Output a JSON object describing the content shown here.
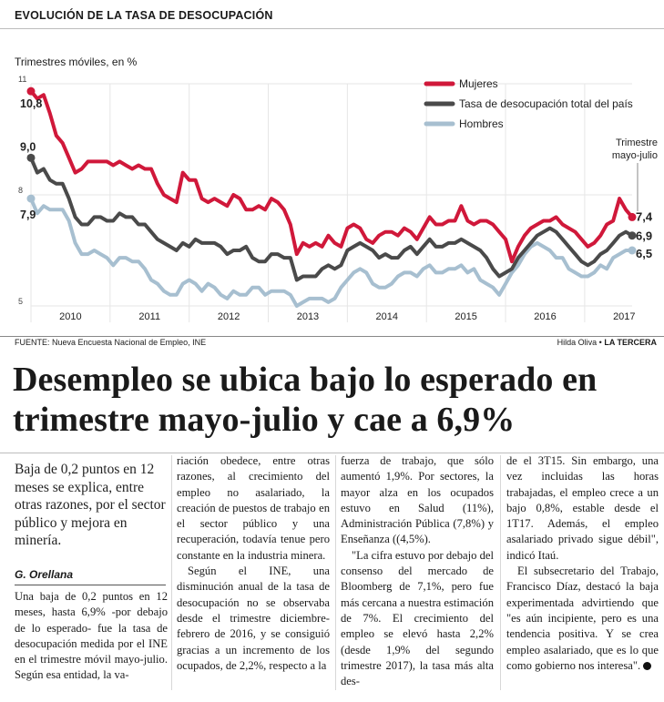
{
  "header": {
    "kicker": "EVOLUCIÓN DE LA TASA DE DESOCUPACIÓN",
    "units": "Trimestres móviles, en %"
  },
  "chart_data": {
    "type": "line",
    "x_range": [
      2010.0,
      2017.6
    ],
    "ylim": [
      5,
      11
    ],
    "y_ticks": [
      5,
      8,
      11
    ],
    "year_labels": [
      "2010",
      "2011",
      "2012",
      "2013",
      "2014",
      "2015",
      "2016",
      "2017"
    ],
    "legend": [
      "Mujeres",
      "Tasa de desocupación total del país",
      "Hombres"
    ],
    "annotation": "Trimestre mayo-julio",
    "start_labels": [
      "10,8",
      "9,0",
      "7,9"
    ],
    "end_labels": [
      "7,4",
      "6,9",
      "6,5"
    ],
    "series": [
      {
        "name": "Mujeres",
        "color": "#d0183a",
        "values": [
          10.8,
          10.6,
          10.7,
          10.2,
          9.6,
          9.4,
          9.0,
          8.6,
          8.7,
          8.9,
          8.9,
          8.9,
          8.9,
          8.8,
          8.9,
          8.8,
          8.7,
          8.8,
          8.7,
          8.7,
          8.3,
          8.0,
          7.9,
          7.8,
          8.6,
          8.4,
          8.4,
          7.9,
          7.8,
          7.9,
          7.8,
          7.7,
          8.0,
          7.9,
          7.6,
          7.6,
          7.7,
          7.6,
          7.9,
          7.8,
          7.6,
          7.2,
          6.4,
          6.7,
          6.6,
          6.7,
          6.6,
          6.9,
          6.7,
          6.6,
          7.1,
          7.2,
          7.1,
          6.8,
          6.7,
          6.9,
          7.0,
          7.0,
          6.9,
          7.1,
          7.0,
          6.8,
          7.1,
          7.4,
          7.2,
          7.2,
          7.3,
          7.3,
          7.7,
          7.3,
          7.2,
          7.3,
          7.3,
          7.2,
          7.0,
          6.8,
          6.2,
          6.6,
          6.9,
          7.1,
          7.2,
          7.3,
          7.3,
          7.4,
          7.2,
          7.1,
          7.0,
          6.8,
          6.6,
          6.7,
          6.9,
          7.2,
          7.3,
          7.9,
          7.6,
          7.4
        ]
      },
      {
        "name": "Tasa de desocupación total del país",
        "color": "#4a4a4a",
        "values": [
          9.0,
          8.6,
          8.7,
          8.4,
          8.3,
          8.3,
          7.9,
          7.4,
          7.2,
          7.2,
          7.4,
          7.4,
          7.3,
          7.3,
          7.5,
          7.4,
          7.4,
          7.2,
          7.2,
          7.0,
          6.8,
          6.7,
          6.6,
          6.5,
          6.7,
          6.6,
          6.8,
          6.7,
          6.7,
          6.7,
          6.6,
          6.4,
          6.5,
          6.5,
          6.6,
          6.3,
          6.2,
          6.2,
          6.4,
          6.4,
          6.3,
          6.3,
          5.7,
          5.8,
          5.8,
          5.8,
          6.0,
          6.1,
          6.0,
          6.1,
          6.5,
          6.6,
          6.7,
          6.6,
          6.5,
          6.3,
          6.4,
          6.3,
          6.3,
          6.5,
          6.6,
          6.4,
          6.6,
          6.8,
          6.6,
          6.6,
          6.7,
          6.7,
          6.8,
          6.7,
          6.6,
          6.5,
          6.3,
          6.0,
          5.8,
          5.9,
          6.0,
          6.3,
          6.5,
          6.7,
          6.9,
          7.0,
          7.1,
          7.0,
          6.8,
          6.6,
          6.4,
          6.2,
          6.1,
          6.2,
          6.4,
          6.5,
          6.7,
          6.9,
          7.0,
          6.9
        ]
      },
      {
        "name": "Hombres",
        "color": "#a7bfd0",
        "values": [
          7.9,
          7.5,
          7.7,
          7.6,
          7.6,
          7.6,
          7.3,
          6.7,
          6.4,
          6.4,
          6.5,
          6.4,
          6.3,
          6.1,
          6.3,
          6.3,
          6.2,
          6.2,
          6.0,
          5.7,
          5.6,
          5.4,
          5.3,
          5.3,
          5.6,
          5.7,
          5.6,
          5.4,
          5.6,
          5.5,
          5.3,
          5.2,
          5.4,
          5.3,
          5.3,
          5.5,
          5.5,
          5.3,
          5.4,
          5.4,
          5.4,
          5.3,
          5.0,
          5.1,
          5.2,
          5.2,
          5.2,
          5.1,
          5.2,
          5.5,
          5.7,
          5.9,
          6.0,
          5.9,
          5.6,
          5.5,
          5.5,
          5.6,
          5.8,
          5.9,
          5.9,
          5.8,
          6.0,
          6.1,
          5.9,
          5.9,
          6.0,
          6.0,
          6.1,
          5.9,
          6.0,
          5.7,
          5.6,
          5.5,
          5.3,
          5.6,
          5.9,
          6.1,
          6.4,
          6.6,
          6.7,
          6.6,
          6.5,
          6.3,
          6.3,
          6.0,
          5.9,
          5.8,
          5.8,
          5.9,
          6.1,
          6.0,
          6.3,
          6.4,
          6.5,
          6.5
        ]
      }
    ]
  },
  "footer": {
    "source": "FUENTE: Nueva Encuesta Nacional de Empleo, INE",
    "author": "Hilda Oliva",
    "separator": " • ",
    "outlet": "LA TERCERA"
  },
  "article": {
    "headline": "Desempleo se ubica bajo lo esperado en trimestre mayo-julio y cae a 6,9%",
    "deck": "Baja de 0,2 puntos en 12 meses se explica, entre otras razones, por el sector público y mejora en minería.",
    "byline": "G. Orellana",
    "col1": "Una baja de 0,2 puntos en 12 meses, hasta 6,9% -por debajo de lo esperado- fue la tasa de desocupación medida por el INE en el trimestre móvil mayo-julio. Según esa entidad, la va-",
    "col2_p1": "riación obedece, entre otras razones, al crecimiento del empleo no asalariado, la creación de puestos de trabajo en el sector público y una recuperación, todavía tenue pero constante en la industria minera.",
    "col2_p2": "Según el INE, una disminución anual de la tasa de desocupación no se observaba desde el trimestre diciembre-febrero de 2016, y se consiguió gracias a un incremento de los ocupados, de 2,2%, respecto a la",
    "col3_p1": "fuerza de trabajo, que sólo aumentó 1,9%. Por sectores, la mayor alza en los ocupados estuvo en Salud (11%), Administración Pública (7,8%) y Enseñanza ((4,5%).",
    "col3_p2": "\"La cifra estuvo por debajo del consenso del mercado de Bloomberg de 7,1%, pero fue más cercana a nuestra estimación de 7%. El crecimiento del empleo se elevó hasta 2,2% (desde 1,9% del segundo trimestre 2017), la tasa más alta des-",
    "col4_p1": "de el 3T15. Sin embargo, una vez incluidas las horas trabajadas, el empleo crece a un bajo 0,8%, estable desde el 1T17. Además, el empleo asalariado privado sigue débil\", indicó Itaú.",
    "col4_p2": "El subsecretario del Trabajo, Francisco Díaz, destacó la baja experimentada advirtiendo que \"es aún incipiente, pero es una tendencia positiva. Y se crea empleo asalariado, que es lo que como gobierno nos interesa\"."
  }
}
